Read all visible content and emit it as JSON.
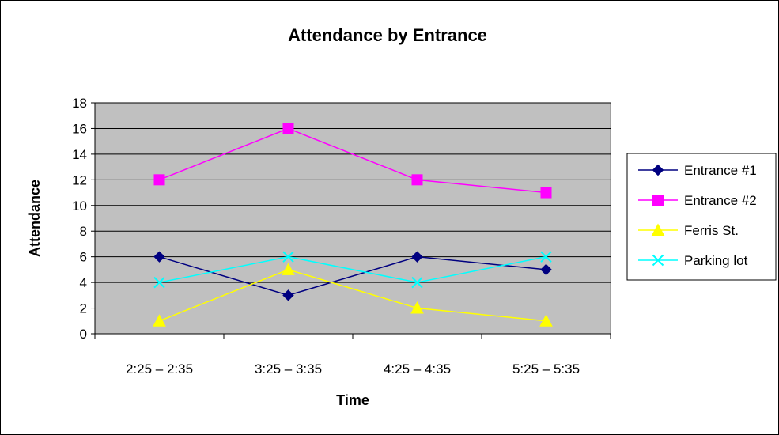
{
  "chart_data": {
    "type": "line",
    "title": "Attendance by Entrance",
    "xlabel": "Time",
    "ylabel": "Attendance",
    "categories": [
      "2:25 – 2:35",
      "3:25 – 3:35",
      "4:25 – 4:35",
      "5:25 – 5:35"
    ],
    "ylim": [
      0,
      18
    ],
    "yticks": [
      0,
      2,
      4,
      6,
      8,
      10,
      12,
      14,
      16,
      18
    ],
    "grid": true,
    "plot_background": "#c0c0c0",
    "legend_position": "right",
    "series": [
      {
        "name": "Entrance #1",
        "values": [
          6,
          3,
          6,
          5
        ],
        "color": "#000080",
        "marker": "diamond"
      },
      {
        "name": "Entrance #2",
        "values": [
          12,
          16,
          12,
          11
        ],
        "color": "#ff00ff",
        "marker": "square"
      },
      {
        "name": "Ferris St.",
        "values": [
          1,
          5,
          2,
          1
        ],
        "color": "#ffff00",
        "marker": "triangle"
      },
      {
        "name": "Parking lot",
        "values": [
          4,
          6,
          4,
          6
        ],
        "color": "#00ffff",
        "marker": "x"
      }
    ]
  }
}
